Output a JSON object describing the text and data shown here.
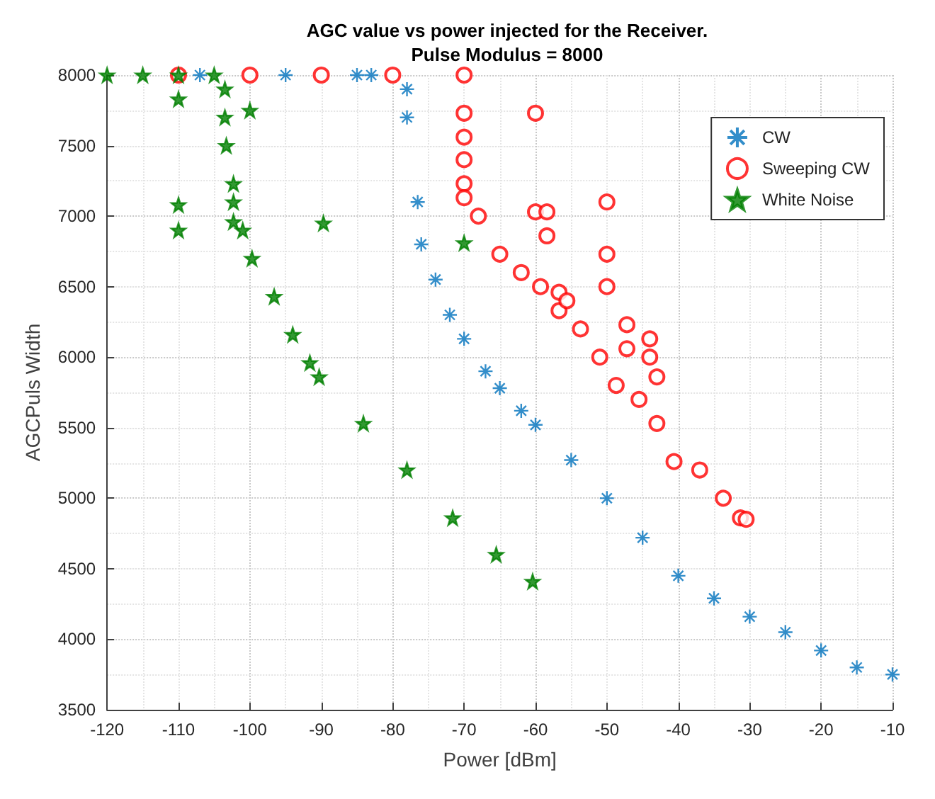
{
  "chart_data": {
    "type": "scatter",
    "title": "AGC value vs power injected for the Receiver.",
    "subtitle": "Pulse Modulus = 8000",
    "xlabel": "Power [dBm]",
    "ylabel": "AGCPuls Width",
    "xlim": [
      -120,
      -10
    ],
    "xticks": [
      -120,
      -110,
      -100,
      -90,
      -80,
      -70,
      -60,
      -50,
      -40,
      -30,
      -20,
      -10
    ],
    "ylim": [
      3500,
      8000
    ],
    "yticks": [
      3500,
      4000,
      4500,
      5000,
      5500,
      6000,
      6500,
      7000,
      7500,
      8000
    ],
    "grid": true,
    "legend": "top right",
    "series": [
      {
        "name": "CW",
        "color": "#0072bd",
        "marker": "cross",
        "x": [
          -107,
          -95,
          -85,
          -83,
          -78,
          -78,
          -76.5,
          -76,
          -74,
          -72,
          -70,
          -67,
          -65,
          -62,
          -60,
          -55,
          -50,
          -45,
          -40,
          -35,
          -30,
          -25,
          -20,
          -15,
          -10
        ],
        "values": [
          8000,
          8000,
          8000,
          8000,
          7900,
          7700,
          7100,
          6800,
          6550,
          6300,
          6130,
          5900,
          5780,
          5620,
          5520,
          5270,
          5000,
          4720,
          4450,
          4290,
          4160,
          4050,
          3920,
          3800,
          3750
        ]
      },
      {
        "name": "Sweeping CW",
        "color": "#ff0000",
        "marker": "circle",
        "x": [
          -110,
          -100,
          -90,
          -80,
          -70,
          -70,
          -70,
          -70,
          -70,
          -70,
          -68,
          -65,
          -62,
          -60,
          -60,
          -59.3,
          -58.4,
          -58.4,
          -56.7,
          -56.7,
          -55.6,
          -53.7,
          -51,
          -50,
          -50,
          -50,
          -48.7,
          -47.2,
          -47.2,
          -45.5,
          -44,
          -44,
          -43,
          -43,
          -40.6,
          -37,
          -33.7,
          -31.3,
          -30.5
        ],
        "values": [
          8000,
          8000,
          8000,
          8000,
          8000,
          7730,
          7560,
          7400,
          7230,
          7130,
          7000,
          6730,
          6600,
          7730,
          7030,
          6500,
          7030,
          6860,
          6460,
          6330,
          6400,
          6200,
          6000,
          7100,
          6730,
          6500,
          5800,
          6230,
          6060,
          5700,
          6130,
          6000,
          5860,
          5530,
          5260,
          5200,
          5000,
          4860,
          4850
        ]
      },
      {
        "name": "White Noise",
        "color": "#008000",
        "marker": "star",
        "x": [
          -120,
          -115,
          -110,
          -105,
          -103.5,
          -103.5,
          -103.3,
          -102.3,
          -102.3,
          -102.3,
          -110,
          -110,
          -110,
          -100,
          -101,
          -99.7,
          -96.6,
          -94,
          -91.6,
          -90.3,
          -89.7,
          -84.1,
          -78,
          -71.6,
          -70,
          -65.5,
          -60.4
        ],
        "values": [
          8000,
          8000,
          8000,
          8000,
          7900,
          7700,
          7500,
          7230,
          7100,
          6960,
          7830,
          7080,
          6900,
          7750,
          6900,
          6700,
          6430,
          6160,
          5960,
          5860,
          6950,
          5530,
          5200,
          4860,
          6810,
          4600,
          4410
        ]
      }
    ]
  }
}
